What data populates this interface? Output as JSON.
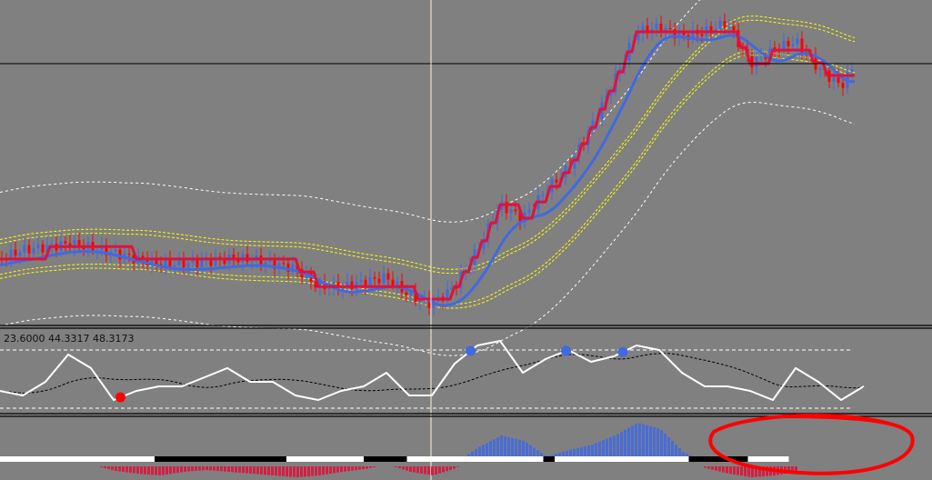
{
  "indicator_label": "23.6000 44.3317 48.3173",
  "colors": {
    "background": "#808080",
    "bull": "#4169e1",
    "bear": "#ff0000",
    "fast_ma": "#4169e1",
    "slow_ma": "#dc143c",
    "band_inner": "#ffff00",
    "band_outer": "#ffffff",
    "annotation": "#ff0000",
    "hist_pos": "#4169e1",
    "hist_neg": "#dc143c"
  },
  "chart_data": [
    {
      "type": "line",
      "panel": "price",
      "title": "",
      "step_bars": 25,
      "close": [
        21.5,
        24.4,
        25.3,
        26.5,
        25.3,
        23.5,
        21.5,
        20,
        20,
        20.6,
        21.5,
        21.5,
        20,
        18.5,
        12.6,
        12.6,
        14.1,
        15.6,
        9.7,
        6.8,
        12.6,
        24.4,
        39.1,
        34.7,
        43.5,
        50.9,
        64.1,
        78.8,
        95,
        96.5,
        93.5,
        95,
        97.9,
        84.7,
        89.1,
        92,
        83.2,
        77.4,
        89.1
      ],
      "ylim": [
        0,
        105
      ]
    },
    {
      "type": "line",
      "panel": "oscillator",
      "levels": [
        20,
        80
      ],
      "ylim": [
        0,
        100
      ],
      "values": [
        37.8,
        33.1,
        47.2,
        75.3,
        61.3,
        28.4,
        37.8,
        42.5,
        42.5,
        51.9,
        61.3,
        47.2,
        47.2,
        33.1,
        28.4,
        37.8,
        42.5,
        56.6,
        33.1,
        33.1,
        65.9,
        84.7,
        89.4,
        56.6,
        70.6,
        80,
        67.8,
        73.4,
        84.7,
        80,
        56.6,
        42.5,
        42.5,
        37.8,
        28.4,
        61.3,
        47.2,
        28.4,
        42.5
      ],
      "signals": [
        {
          "index": 5.3,
          "type": "sell-low",
          "color": "#ff0000"
        },
        {
          "index": 20.7,
          "type": "high",
          "color": "#4169e1"
        },
        {
          "index": 24.9,
          "type": "high",
          "color": "#4169e1"
        },
        {
          "index": 27.4,
          "type": "high",
          "color": "#4169e1"
        }
      ]
    },
    {
      "type": "bar",
      "panel": "histogram",
      "values": [
        0,
        0,
        2,
        3,
        2,
        -5,
        -8,
        -10,
        -6,
        -4,
        -6,
        -8,
        -10,
        -12,
        -10,
        -6,
        -3,
        2,
        -6,
        -10,
        -2,
        15,
        28,
        22,
        5,
        12,
        18,
        28,
        42,
        35,
        10,
        -2,
        -8,
        -12,
        -10,
        -6
      ],
      "state_band": [
        [
          "white",
          0,
          6.8
        ],
        [
          "black",
          6.8,
          12.6
        ],
        [
          "white",
          12.6,
          16
        ],
        [
          "black",
          16,
          17.9
        ],
        [
          "white",
          17.9,
          23.9
        ],
        [
          "black",
          23.9,
          24.4
        ],
        [
          "white",
          24.4,
          30.3
        ],
        [
          "black",
          30.3,
          32.9
        ],
        [
          "white",
          32.9,
          34.7
        ]
      ]
    }
  ]
}
